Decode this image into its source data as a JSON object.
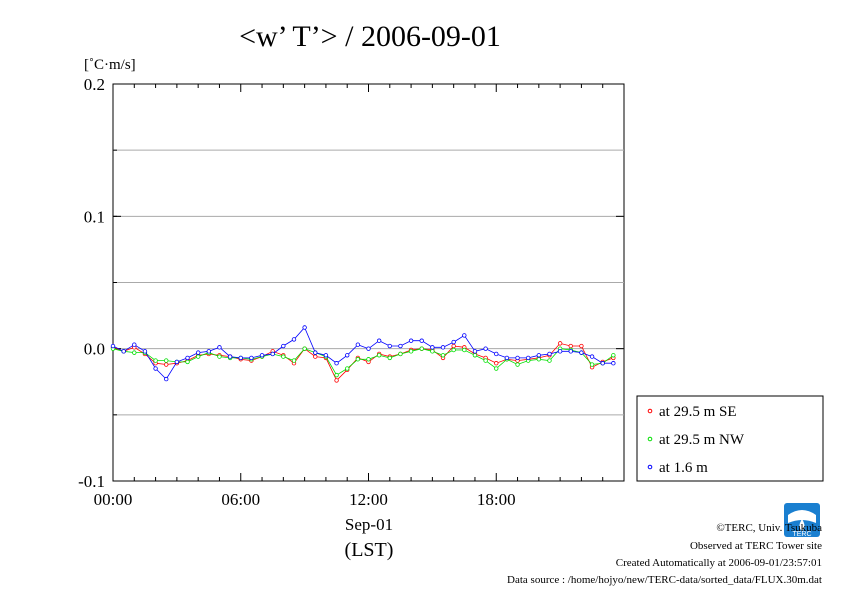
{
  "chart_data": {
    "type": "line",
    "title": "<w’ T’> / 2006-09-01",
    "ylabel": "[˚C·m/s]",
    "xlabel_date": "Sep-01",
    "xlabel_unit": "(LST)",
    "ylim": [
      -0.1,
      0.2
    ],
    "yticks": [
      -0.1,
      0.0,
      0.1,
      0.2
    ],
    "ytick_labels": [
      "-0.1",
      "0.0",
      "0.1",
      "0.2"
    ],
    "xlim": [
      0,
      24
    ],
    "xticks": [
      0,
      6,
      12,
      18
    ],
    "xtick_labels": [
      "00:00",
      "06:00",
      "12:00",
      "18:00"
    ],
    "grid": true,
    "legend_position": "bottom-right",
    "x": [
      0.0,
      0.5,
      1.0,
      1.5,
      2.0,
      2.5,
      3.0,
      3.5,
      4.0,
      4.5,
      5.0,
      5.5,
      6.0,
      6.5,
      7.0,
      7.5,
      8.0,
      8.5,
      9.0,
      9.5,
      10.0,
      10.5,
      11.0,
      11.5,
      12.0,
      12.5,
      13.0,
      13.5,
      14.0,
      14.5,
      15.0,
      15.5,
      16.0,
      16.5,
      17.0,
      17.5,
      18.0,
      18.5,
      19.0,
      19.5,
      20.0,
      20.5,
      21.0,
      21.5,
      22.0,
      22.5,
      23.0,
      23.5
    ],
    "series": [
      {
        "name": "at 29.5 m SE",
        "color": "#ff0000",
        "values": [
          0.001,
          -0.002,
          0.001,
          -0.004,
          -0.011,
          -0.012,
          -0.011,
          -0.009,
          -0.005,
          -0.004,
          -0.005,
          -0.006,
          -0.008,
          -0.009,
          -0.006,
          -0.002,
          -0.005,
          -0.011,
          0.0,
          -0.006,
          -0.007,
          -0.024,
          -0.016,
          -0.007,
          -0.01,
          -0.004,
          -0.006,
          -0.004,
          -0.001,
          0.0,
          -0.001,
          -0.007,
          0.002,
          0.001,
          -0.004,
          -0.007,
          -0.011,
          -0.008,
          -0.009,
          -0.008,
          -0.007,
          -0.005,
          0.004,
          0.002,
          0.002,
          -0.014,
          -0.01,
          -0.007
        ]
      },
      {
        "name": "at 29.5 m NW",
        "color": "#00e000",
        "values": [
          0.0,
          -0.002,
          -0.003,
          -0.003,
          -0.009,
          -0.009,
          -0.01,
          -0.01,
          -0.006,
          -0.003,
          -0.006,
          -0.007,
          -0.007,
          -0.008,
          -0.006,
          -0.004,
          -0.006,
          -0.009,
          0.0,
          -0.003,
          -0.006,
          -0.02,
          -0.015,
          -0.008,
          -0.008,
          -0.005,
          -0.007,
          -0.004,
          -0.002,
          0.0,
          -0.002,
          -0.005,
          -0.001,
          -0.001,
          -0.005,
          -0.009,
          -0.015,
          -0.008,
          -0.012,
          -0.009,
          -0.008,
          -0.009,
          0.0,
          -0.001,
          -0.003,
          -0.012,
          -0.011,
          -0.005
        ]
      },
      {
        "name": "at 1.6 m",
        "color": "#0000ff",
        "values": [
          0.002,
          -0.002,
          0.003,
          -0.002,
          -0.015,
          -0.023,
          -0.01,
          -0.007,
          -0.003,
          -0.002,
          0.001,
          -0.006,
          -0.007,
          -0.007,
          -0.005,
          -0.004,
          0.002,
          0.007,
          0.016,
          -0.003,
          -0.005,
          -0.011,
          -0.005,
          0.003,
          0.0,
          0.006,
          0.002,
          0.002,
          0.006,
          0.006,
          0.001,
          0.001,
          0.005,
          0.01,
          -0.002,
          0.0,
          -0.004,
          -0.007,
          -0.007,
          -0.007,
          -0.005,
          -0.004,
          -0.002,
          -0.002,
          -0.003,
          -0.006,
          -0.011,
          -0.011
        ]
      }
    ]
  },
  "footer": {
    "copyright": "©TERC, Univ. Tsukuba",
    "observed": "Observed at TERC Tower site",
    "created": "Created Automatically at 2006-09-01/23:57:01",
    "source": "Data source : /home/hojyo/new/TERC-data/sorted_data/FLUX.30m.dat",
    "logo_text": "TERC"
  }
}
